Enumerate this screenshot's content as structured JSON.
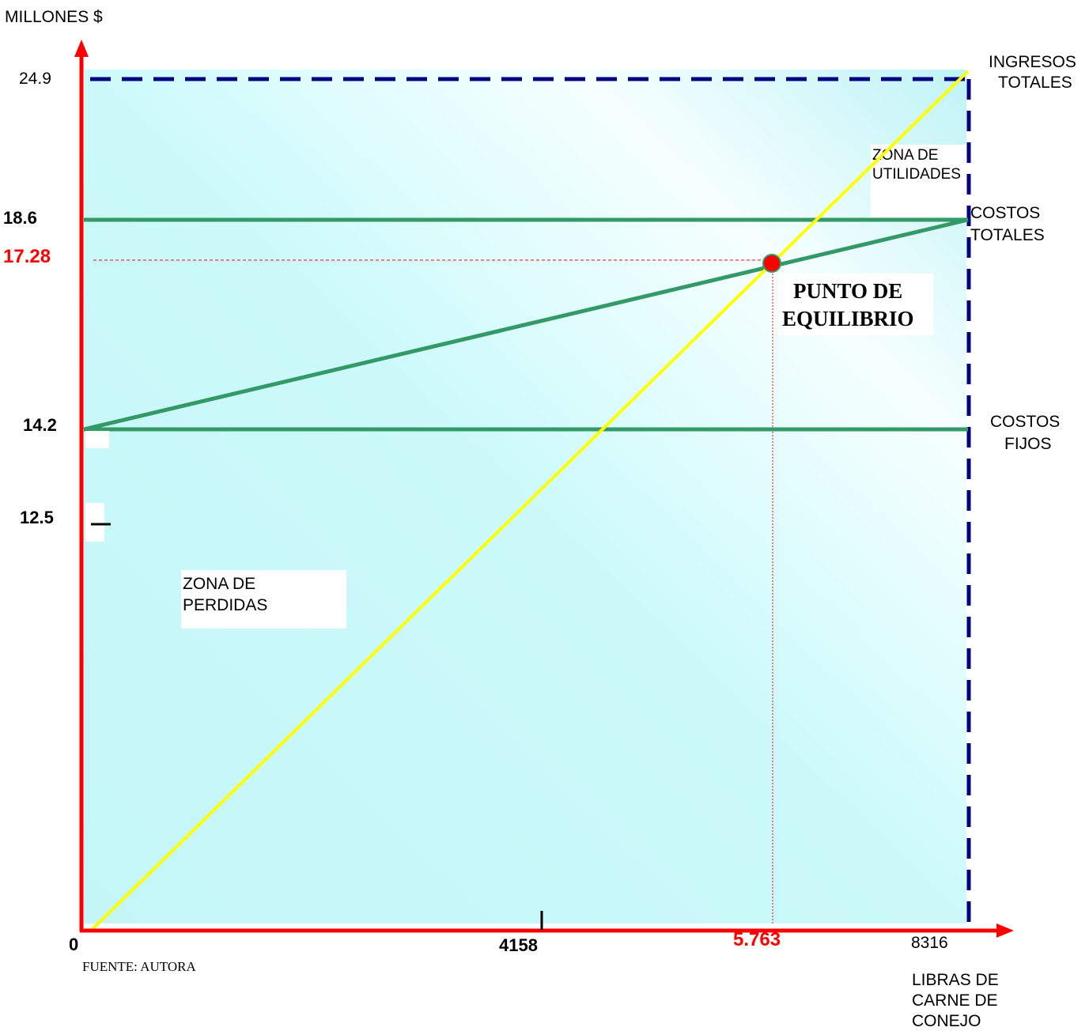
{
  "chart_data": {
    "type": "line",
    "ylabel": "MILLONES $",
    "xlabel_lines": [
      "LIBRAS DE",
      "CARNE DE",
      "CONEJO"
    ],
    "x_ticks": [
      "0",
      "4158",
      "5.763",
      "8316"
    ],
    "y_ticks": [
      "24.9",
      "18.6",
      "17.28",
      "14.2",
      "12.5"
    ],
    "x_max": 8316,
    "y_max": 24.9,
    "series": [
      {
        "name_lines": [
          "INGRESOS",
          "TOTALES"
        ],
        "color": "#ffff00",
        "points": [
          [
            0,
            0
          ],
          [
            8316,
            24.9
          ]
        ]
      },
      {
        "name_lines": [
          "COSTOS",
          "TOTALES"
        ],
        "color": "#339966",
        "points": [
          [
            0,
            14.2
          ],
          [
            8316,
            18.6
          ]
        ]
      },
      {
        "name_lines": [
          "COSTOS",
          "FIJOS"
        ],
        "color": "#339966",
        "points": [
          [
            0,
            14.2
          ],
          [
            8316,
            14.2
          ]
        ]
      }
    ],
    "reference_line": {
      "y": 18.6,
      "color": "#339966"
    },
    "break_even": {
      "x": 5763,
      "y": 17.28,
      "label_lines": [
        "PUNTO DE",
        "EQUILIBRIO"
      ],
      "color": "#ff0000"
    },
    "zones": {
      "profit": [
        "ZONA DE",
        "UTILIDADES"
      ],
      "loss": [
        "ZONA DE",
        "PERDIDAS"
      ]
    },
    "bounds_color": "#000080",
    "axis_color": "#ff0000",
    "source": "FUENTE: AUTORA"
  }
}
